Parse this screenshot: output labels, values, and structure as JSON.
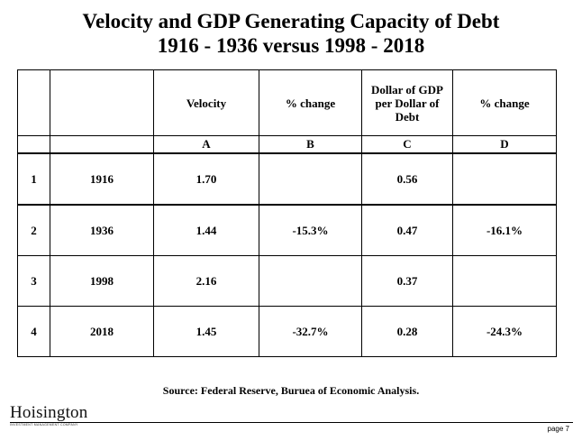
{
  "title": {
    "line1": "Velocity and GDP Generating Capacity of Debt",
    "line2": "1916 - 1936 versus 1998 - 2018"
  },
  "table": {
    "headers": [
      "",
      "",
      "Velocity",
      "% change",
      "Dollar of GDP per Dollar of Debt",
      "% change"
    ],
    "letters": [
      "",
      "",
      "A",
      "B",
      "C",
      "D"
    ],
    "rows": [
      {
        "num": "1",
        "year": "1916",
        "velocity": "1.70",
        "vel_change": "",
        "gdp_per_debt": "0.56",
        "gdp_change": ""
      },
      {
        "num": "2",
        "year": "1936",
        "velocity": "1.44",
        "vel_change": "-15.3%",
        "gdp_per_debt": "0.47",
        "gdp_change": "-16.1%"
      },
      {
        "num": "3",
        "year": "1998",
        "velocity": "2.16",
        "vel_change": "",
        "gdp_per_debt": "0.37",
        "gdp_change": ""
      },
      {
        "num": "4",
        "year": "2018",
        "velocity": "1.45",
        "vel_change": "-32.7%",
        "gdp_per_debt": "0.28",
        "gdp_change": "-24.3%"
      }
    ]
  },
  "source": "Source: Federal Reserve, Buruea of Economic Analysis.",
  "footer": {
    "logo": "Hoisington",
    "logo_sub": "Investment Management Company",
    "page": "page 7"
  }
}
